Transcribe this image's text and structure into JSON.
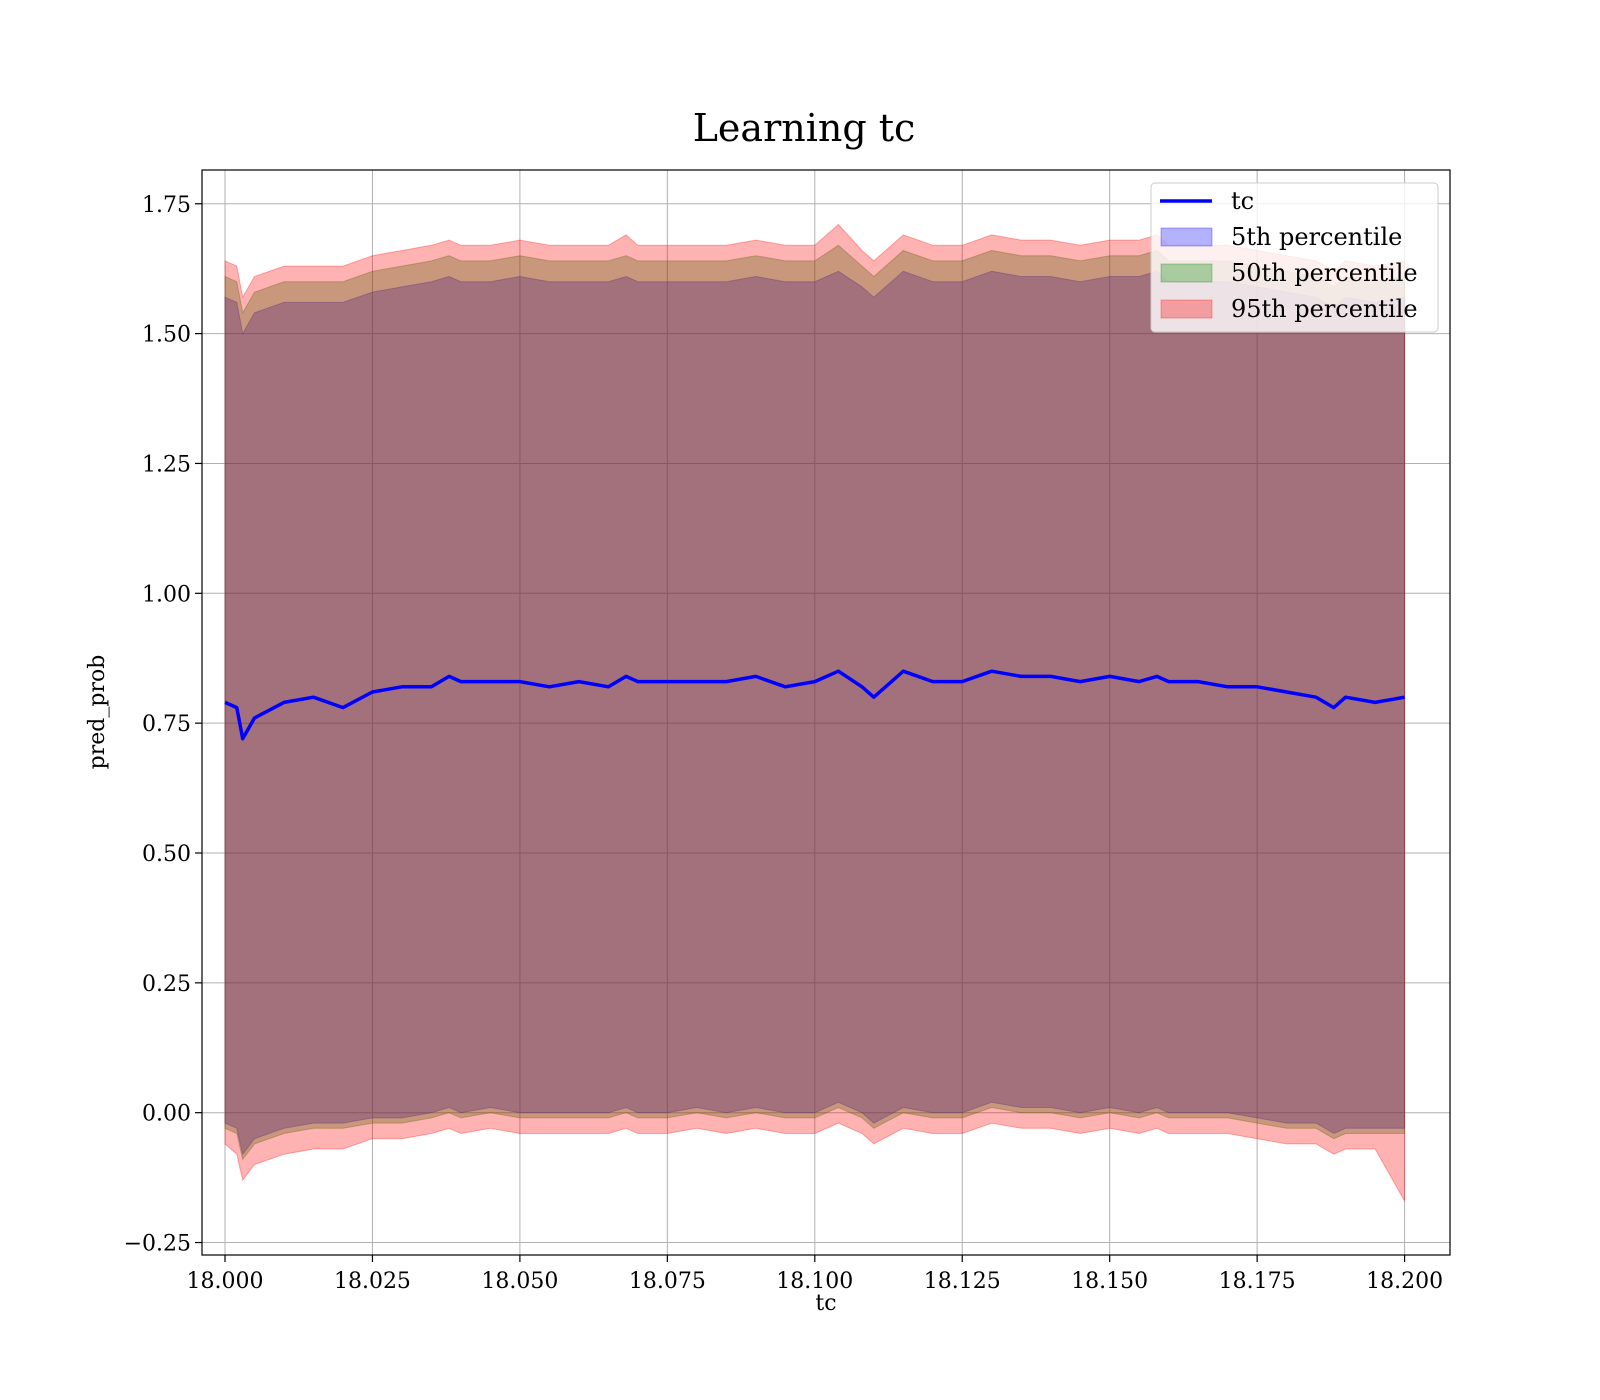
{
  "chart_data": {
    "type": "line",
    "title": "Learning tc",
    "xlabel": "tc",
    "ylabel": "pred_prob",
    "xlim": [
      17.9961,
      18.2077
    ],
    "ylim": [
      -0.274,
      1.815
    ],
    "x_ticks": [
      18.0,
      18.025,
      18.05,
      18.075,
      18.1,
      18.125,
      18.15,
      18.175,
      18.2
    ],
    "x_tick_labels": [
      "18.000",
      "18.025",
      "18.050",
      "18.075",
      "18.100",
      "18.125",
      "18.150",
      "18.175",
      "18.200"
    ],
    "y_ticks": [
      -0.25,
      0.0,
      0.25,
      0.5,
      0.75,
      1.0,
      1.25,
      1.5,
      1.75
    ],
    "y_tick_labels": [
      "−0.25",
      "0.00",
      "0.25",
      "0.50",
      "0.75",
      "1.00",
      "1.25",
      "1.50",
      "1.75"
    ],
    "grid": true,
    "legend_position": "top-right",
    "x": [
      18.0,
      18.002,
      18.003,
      18.005,
      18.01,
      18.015,
      18.02,
      18.025,
      18.03,
      18.035,
      18.038,
      18.04,
      18.045,
      18.05,
      18.055,
      18.06,
      18.065,
      18.068,
      18.07,
      18.075,
      18.08,
      18.085,
      18.09,
      18.095,
      18.1,
      18.104,
      18.108,
      18.11,
      18.115,
      18.12,
      18.125,
      18.13,
      18.135,
      18.14,
      18.145,
      18.15,
      18.155,
      18.158,
      18.16,
      18.165,
      18.17,
      18.175,
      18.18,
      18.185,
      18.188,
      18.19,
      18.195,
      18.2
    ],
    "series": [
      {
        "name": "tc",
        "color": "#0000ff",
        "values": [
          0.79,
          0.78,
          0.72,
          0.76,
          0.79,
          0.8,
          0.78,
          0.81,
          0.82,
          0.82,
          0.84,
          0.83,
          0.83,
          0.83,
          0.82,
          0.83,
          0.82,
          0.84,
          0.83,
          0.83,
          0.83,
          0.83,
          0.84,
          0.82,
          0.83,
          0.85,
          0.82,
          0.8,
          0.85,
          0.83,
          0.83,
          0.85,
          0.84,
          0.84,
          0.83,
          0.84,
          0.83,
          0.84,
          0.83,
          0.83,
          0.82,
          0.82,
          0.81,
          0.8,
          0.78,
          0.8,
          0.79,
          0.8
        ]
      }
    ],
    "bands": [
      {
        "name": "5th percentile",
        "color": "#0000ff",
        "lower": [
          -0.02,
          -0.03,
          -0.08,
          -0.05,
          -0.03,
          -0.02,
          -0.02,
          -0.01,
          -0.01,
          0.0,
          0.01,
          0.0,
          0.01,
          0.0,
          0.0,
          0.0,
          0.0,
          0.01,
          0.0,
          0.0,
          0.01,
          0.0,
          0.01,
          0.0,
          0.0,
          0.02,
          0.0,
          -0.02,
          0.01,
          0.0,
          0.0,
          0.02,
          0.01,
          0.01,
          0.0,
          0.01,
          0.0,
          0.01,
          0.0,
          0.0,
          0.0,
          -0.01,
          -0.02,
          -0.02,
          -0.04,
          -0.03,
          -0.03,
          -0.03
        ],
        "upper": [
          1.57,
          1.56,
          1.5,
          1.54,
          1.56,
          1.56,
          1.56,
          1.58,
          1.59,
          1.6,
          1.61,
          1.6,
          1.6,
          1.61,
          1.6,
          1.6,
          1.6,
          1.61,
          1.6,
          1.6,
          1.6,
          1.6,
          1.61,
          1.6,
          1.6,
          1.62,
          1.59,
          1.57,
          1.62,
          1.6,
          1.6,
          1.62,
          1.61,
          1.61,
          1.6,
          1.61,
          1.61,
          1.62,
          1.6,
          1.6,
          1.6,
          1.59,
          1.58,
          1.57,
          1.55,
          1.57,
          1.56,
          1.57
        ]
      },
      {
        "name": "50th percentile",
        "color": "#008000",
        "lower": [
          -0.03,
          -0.04,
          -0.09,
          -0.06,
          -0.04,
          -0.03,
          -0.03,
          -0.02,
          -0.02,
          -0.01,
          0.0,
          -0.01,
          0.0,
          -0.01,
          -0.01,
          -0.01,
          -0.01,
          0.0,
          -0.01,
          -0.01,
          0.0,
          -0.01,
          0.0,
          -0.01,
          -0.01,
          0.01,
          -0.01,
          -0.03,
          0.0,
          -0.01,
          -0.01,
          0.01,
          0.0,
          0.0,
          -0.01,
          0.0,
          -0.01,
          0.0,
          -0.01,
          -0.01,
          -0.01,
          -0.02,
          -0.03,
          -0.03,
          -0.05,
          -0.04,
          -0.04,
          -0.04
        ],
        "upper": [
          1.61,
          1.6,
          1.54,
          1.58,
          1.6,
          1.6,
          1.6,
          1.62,
          1.63,
          1.64,
          1.65,
          1.64,
          1.64,
          1.65,
          1.64,
          1.64,
          1.64,
          1.65,
          1.64,
          1.64,
          1.64,
          1.64,
          1.65,
          1.64,
          1.64,
          1.67,
          1.63,
          1.61,
          1.66,
          1.64,
          1.64,
          1.66,
          1.65,
          1.65,
          1.64,
          1.65,
          1.65,
          1.66,
          1.64,
          1.64,
          1.64,
          1.63,
          1.62,
          1.61,
          1.59,
          1.61,
          1.6,
          1.61
        ]
      },
      {
        "name": "95th percentile",
        "color": "#ff0000",
        "lower": [
          -0.06,
          -0.08,
          -0.13,
          -0.1,
          -0.08,
          -0.07,
          -0.07,
          -0.05,
          -0.05,
          -0.04,
          -0.03,
          -0.04,
          -0.03,
          -0.04,
          -0.04,
          -0.04,
          -0.04,
          -0.03,
          -0.04,
          -0.04,
          -0.03,
          -0.04,
          -0.03,
          -0.04,
          -0.04,
          -0.02,
          -0.04,
          -0.06,
          -0.03,
          -0.04,
          -0.04,
          -0.02,
          -0.03,
          -0.03,
          -0.04,
          -0.03,
          -0.04,
          -0.03,
          -0.04,
          -0.04,
          -0.04,
          -0.05,
          -0.06,
          -0.06,
          -0.08,
          -0.07,
          -0.07,
          -0.17
        ],
        "upper": [
          1.64,
          1.63,
          1.57,
          1.61,
          1.63,
          1.63,
          1.63,
          1.65,
          1.66,
          1.67,
          1.68,
          1.67,
          1.67,
          1.68,
          1.67,
          1.67,
          1.67,
          1.69,
          1.67,
          1.67,
          1.67,
          1.67,
          1.68,
          1.67,
          1.67,
          1.71,
          1.66,
          1.64,
          1.69,
          1.67,
          1.67,
          1.69,
          1.68,
          1.68,
          1.67,
          1.68,
          1.68,
          1.69,
          1.67,
          1.67,
          1.67,
          1.66,
          1.65,
          1.64,
          1.62,
          1.64,
          1.63,
          1.64
        ]
      }
    ]
  }
}
